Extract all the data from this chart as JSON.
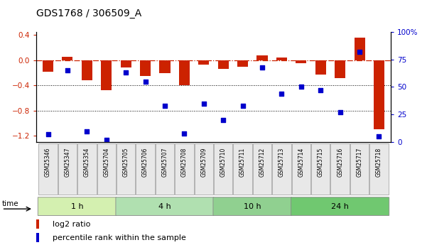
{
  "title": "GDS1768 / 306509_A",
  "samples": [
    "GSM25346",
    "GSM25347",
    "GSM25354",
    "GSM25704",
    "GSM25705",
    "GSM25706",
    "GSM25707",
    "GSM25708",
    "GSM25709",
    "GSM25710",
    "GSM25711",
    "GSM25712",
    "GSM25713",
    "GSM25714",
    "GSM25715",
    "GSM25716",
    "GSM25717",
    "GSM25718"
  ],
  "log2_ratio": [
    -0.18,
    0.05,
    -0.32,
    -0.48,
    -0.12,
    -0.25,
    -0.2,
    -0.4,
    -0.07,
    -0.14,
    -0.1,
    0.08,
    0.04,
    -0.05,
    -0.23,
    -0.28,
    0.36,
    -1.1
  ],
  "percentile": [
    7,
    65,
    10,
    2,
    63,
    55,
    33,
    8,
    35,
    20,
    33,
    68,
    44,
    50,
    47,
    27,
    82,
    5
  ],
  "groups": [
    {
      "label": "1 h",
      "start": 0,
      "end": 4,
      "color": "#d4f0b0"
    },
    {
      "label": "4 h",
      "start": 4,
      "end": 9,
      "color": "#b0e0b0"
    },
    {
      "label": "10 h",
      "start": 9,
      "end": 13,
      "color": "#90d090"
    },
    {
      "label": "24 h",
      "start": 13,
      "end": 18,
      "color": "#70c870"
    }
  ],
  "bar_color": "#cc2200",
  "dot_color": "#0000cc",
  "ylim_left": [
    -1.3,
    0.45
  ],
  "ylim_right": [
    0,
    100
  ],
  "yticks_left": [
    0.4,
    0.0,
    -0.4,
    -0.8,
    -1.2
  ],
  "yticks_right": [
    100,
    75,
    50,
    25,
    0
  ],
  "background_color": "#ffffff",
  "fig_width": 6.01,
  "fig_height": 3.45,
  "dpi": 100
}
